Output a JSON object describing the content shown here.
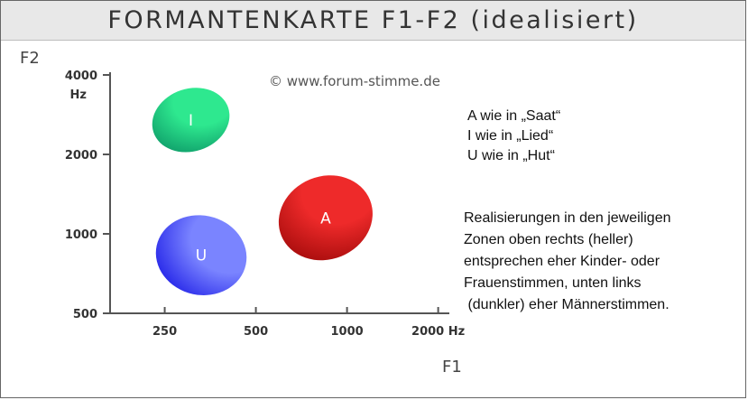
{
  "title": "FORMANTENKARTE F1-F2 (idealisiert)",
  "copyright": "© www.forum-stimme.de",
  "chart_data": {
    "type": "scatter",
    "title": "FORMANTENKARTE F1-F2 (idealisiert)",
    "xlabel": "F1",
    "ylabel": "F2",
    "x_scale": "log",
    "y_scale": "log",
    "xlim": [
      165,
      2300
    ],
    "ylim": [
      500,
      4000
    ],
    "grid": false,
    "x_ticks": [
      {
        "value": 250,
        "label": "250"
      },
      {
        "value": 500,
        "label": "500"
      },
      {
        "value": 1000,
        "label": "1000"
      },
      {
        "value": 2000,
        "label": "2000 Hz"
      }
    ],
    "y_ticks": [
      {
        "value": 500,
        "label": "500"
      },
      {
        "value": 1000,
        "label": "1000"
      },
      {
        "value": 2000,
        "label": "2000"
      },
      {
        "value": 4000,
        "label": "4000",
        "unit": "Hz"
      }
    ],
    "zones": [
      {
        "label": "I",
        "f1_center": 305,
        "f2_center": 2700,
        "f1_range": [
          220,
          400
        ],
        "f2_range": [
          2200,
          3800
        ],
        "color": "#2ee88f",
        "color_dark": "#0f9e6a"
      },
      {
        "label": "A",
        "f1_center": 850,
        "f2_center": 1150,
        "f1_range": [
          590,
          1220
        ],
        "f2_range": [
          800,
          1650
        ],
        "color": "#ee2a2a",
        "color_dark": "#a60c0c"
      },
      {
        "label": "U",
        "f1_center": 330,
        "f2_center": 830,
        "f1_range": [
          235,
          470
        ],
        "f2_range": [
          575,
          1150
        ],
        "color": "#7a84ff",
        "color_dark": "#2424e8"
      }
    ]
  },
  "legend": [
    "A wie in „Saat“",
    "I wie in „Lied“",
    "U wie in „Hut“"
  ],
  "note_lines": [
    "Realisierungen in den jeweiligen",
    "Zonen oben rechts (heller)",
    "entsprechen eher Kinder- oder",
    "Frauenstimmen, unten links",
    " (dunkler) eher Männerstimmen."
  ]
}
